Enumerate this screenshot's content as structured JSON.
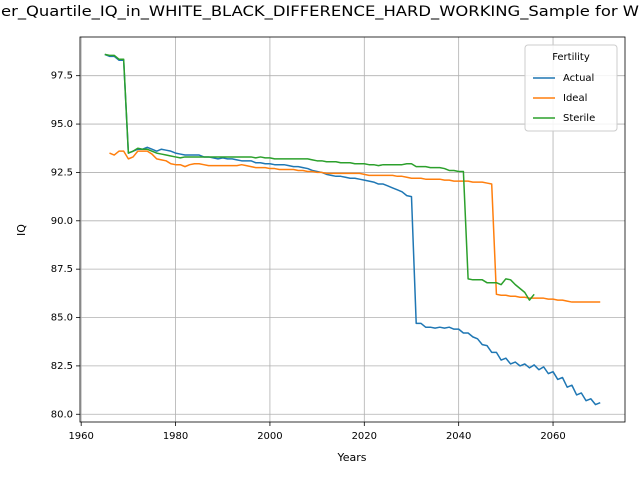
{
  "chart_data": {
    "type": "line",
    "title": "er_Quartile_IQ_in_WHITE_BLACK_DIFFERENCE_HARD_WORKING_Sample for W",
    "xlabel": "Years",
    "ylabel": "IQ",
    "x": [
      1965,
      1966,
      1967,
      1968,
      1969,
      1970,
      1971,
      1972,
      1973,
      1974,
      1975,
      1976,
      1977,
      1978,
      1979,
      1980,
      1981,
      1982,
      1983,
      1984,
      1985,
      1986,
      1987,
      1988,
      1989,
      1990,
      1991,
      1992,
      1993,
      1994,
      1995,
      1996,
      1997,
      1998,
      1999,
      2000,
      2001,
      2002,
      2003,
      2004,
      2005,
      2006,
      2007,
      2008,
      2009,
      2010,
      2011,
      2012,
      2013,
      2014,
      2015,
      2016,
      2017,
      2018,
      2019,
      2020,
      2021,
      2022,
      2023,
      2024,
      2025,
      2026,
      2027,
      2028,
      2029,
      2030,
      2031,
      2032,
      2033,
      2034,
      2035,
      2036,
      2037,
      2038,
      2039,
      2040,
      2041,
      2042,
      2043,
      2044,
      2045,
      2046,
      2047,
      2048,
      2049,
      2050,
      2051,
      2052,
      2053,
      2054,
      2055,
      2056,
      2057,
      2058,
      2059,
      2060,
      2061,
      2062,
      2063,
      2064,
      2065,
      2066,
      2067,
      2068,
      2069,
      2070
    ],
    "series": [
      {
        "name": "Actual",
        "color": "#1f77b4",
        "values": [
          98.6,
          98.5,
          98.5,
          98.3,
          98.3,
          93.5,
          93.6,
          93.7,
          93.7,
          93.8,
          93.7,
          93.6,
          93.7,
          93.65,
          93.6,
          93.5,
          93.45,
          93.4,
          93.4,
          93.4,
          93.4,
          93.3,
          93.3,
          93.25,
          93.2,
          93.25,
          93.2,
          93.2,
          93.15,
          93.1,
          93.1,
          93.1,
          93.0,
          93.0,
          92.95,
          92.95,
          92.9,
          92.9,
          92.9,
          92.85,
          92.8,
          92.8,
          92.75,
          92.7,
          92.6,
          92.55,
          92.5,
          92.4,
          92.35,
          92.3,
          92.3,
          92.25,
          92.2,
          92.2,
          92.15,
          92.1,
          92.05,
          92.0,
          91.9,
          91.9,
          91.8,
          91.7,
          91.6,
          91.5,
          91.3,
          91.25,
          84.7,
          84.7,
          84.5,
          84.5,
          84.45,
          84.5,
          84.45,
          84.5,
          84.4,
          84.4,
          84.2,
          84.2,
          84.0,
          83.9,
          83.6,
          83.55,
          83.2,
          83.2,
          82.8,
          82.9,
          82.6,
          82.7,
          82.5,
          82.6,
          82.4,
          82.55,
          82.3,
          82.45,
          82.1,
          82.2,
          81.8,
          81.9,
          81.4,
          81.5,
          81.0,
          81.1,
          80.7,
          80.8,
          80.5,
          80.6
        ]
      },
      {
        "name": "Ideal",
        "color": "#ff7f0e",
        "values": [
          null,
          93.5,
          93.4,
          93.6,
          93.6,
          93.2,
          93.3,
          93.6,
          93.6,
          93.6,
          93.45,
          93.2,
          93.15,
          93.1,
          92.95,
          92.9,
          92.9,
          92.8,
          92.9,
          92.95,
          92.95,
          92.9,
          92.85,
          92.85,
          92.85,
          92.85,
          92.85,
          92.85,
          92.85,
          92.9,
          92.85,
          92.8,
          92.75,
          92.75,
          92.75,
          92.7,
          92.7,
          92.65,
          92.65,
          92.65,
          92.65,
          92.6,
          92.6,
          92.55,
          92.55,
          92.5,
          92.5,
          92.45,
          92.45,
          92.45,
          92.45,
          92.45,
          92.45,
          92.45,
          92.45,
          92.4,
          92.35,
          92.35,
          92.35,
          92.35,
          92.35,
          92.35,
          92.3,
          92.3,
          92.25,
          92.2,
          92.2,
          92.2,
          92.15,
          92.15,
          92.15,
          92.15,
          92.1,
          92.1,
          92.05,
          92.05,
          92.05,
          92.05,
          92.0,
          92.0,
          92.0,
          91.95,
          91.9,
          86.2,
          86.15,
          86.15,
          86.1,
          86.1,
          86.05,
          86.05,
          86.0,
          86.0,
          86.0,
          86.0,
          85.95,
          85.95,
          85.9,
          85.9,
          85.85,
          85.8,
          85.8,
          85.8,
          85.8,
          85.8,
          85.8,
          85.8
        ]
      },
      {
        "name": "Sterile",
        "color": "#2ca02c",
        "values": [
          98.6,
          98.55,
          98.55,
          98.35,
          98.35,
          93.5,
          93.6,
          93.75,
          93.7,
          93.7,
          93.6,
          93.5,
          93.45,
          93.4,
          93.35,
          93.3,
          93.25,
          93.3,
          93.3,
          93.3,
          93.3,
          93.3,
          93.3,
          93.3,
          93.3,
          93.3,
          93.3,
          93.3,
          93.3,
          93.3,
          93.3,
          93.3,
          93.25,
          93.3,
          93.25,
          93.25,
          93.2,
          93.2,
          93.2,
          93.2,
          93.2,
          93.2,
          93.2,
          93.2,
          93.15,
          93.1,
          93.1,
          93.05,
          93.05,
          93.05,
          93.0,
          93.0,
          93.0,
          92.95,
          92.95,
          92.95,
          92.9,
          92.9,
          92.85,
          92.9,
          92.9,
          92.9,
          92.9,
          92.9,
          92.95,
          92.95,
          92.8,
          92.8,
          92.8,
          92.75,
          92.75,
          92.75,
          92.7,
          92.6,
          92.6,
          92.55,
          92.55,
          87.0,
          86.95,
          86.95,
          86.95,
          86.8,
          86.8,
          86.8,
          86.7,
          87.0,
          86.95,
          86.7,
          86.5,
          86.3,
          85.9,
          86.2,
          null,
          null,
          null,
          null,
          null,
          null,
          null,
          null,
          null,
          null,
          null,
          null,
          null,
          null
        ]
      }
    ],
    "xlim": [
      1959.75,
      2075.25
    ],
    "xticks": [
      1960,
      1980,
      2000,
      2020,
      2040,
      2060
    ],
    "ylim": [
      79.6,
      99.5
    ],
    "yticks": [
      {
        "value": 80,
        "label": "80.0"
      },
      82.5,
      {
        "value": 85,
        "label": "85.0"
      },
      87.5,
      {
        "value": 90,
        "label": "90.0"
      },
      92.5,
      {
        "value": 95,
        "label": "95.0"
      },
      97.5
    ],
    "grid": true,
    "legend": {
      "title": "Fertility",
      "loc": "upper right"
    }
  }
}
